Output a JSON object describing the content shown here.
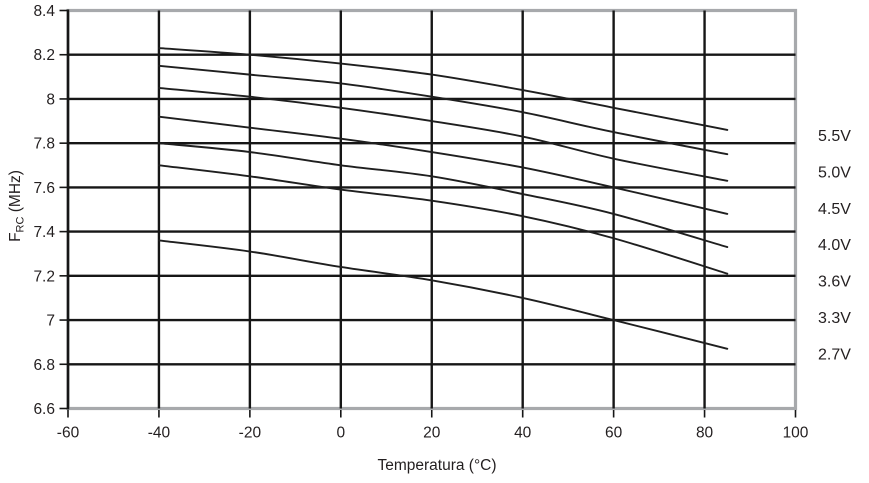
{
  "colors": {
    "line": "#1f1f1f",
    "grid": "#161616",
    "plot_border": "#a7a9ac",
    "text": "#231f20",
    "background": "#ffffff"
  },
  "chart_data": {
    "type": "line",
    "title": "",
    "xlabel": "Temperatura (°C)",
    "ylabel_parts": {
      "pre": "F",
      "sub": "RC",
      "post": " (MHz)"
    },
    "xlim": [
      -60,
      100
    ],
    "ylim": [
      6.6,
      8.4
    ],
    "grid": true,
    "legend_position": "right",
    "x_tick_labels": [
      "-60",
      "-40",
      "-20",
      "0",
      "20",
      "40",
      "60",
      "80",
      "100"
    ],
    "y_tick_labels": [
      "8.4",
      "8.2",
      "8",
      "7.8",
      "7.6",
      "7.4",
      "7.2",
      "7",
      "6.8",
      "6.6"
    ],
    "x": [
      -40,
      -20,
      0,
      20,
      40,
      60,
      85
    ],
    "series": [
      {
        "name": "5.5V",
        "values": [
          8.23,
          8.2,
          8.16,
          8.11,
          8.04,
          7.96,
          7.86
        ]
      },
      {
        "name": "5.0V",
        "values": [
          8.15,
          8.11,
          8.07,
          8.01,
          7.94,
          7.85,
          7.75
        ]
      },
      {
        "name": "4.5V",
        "values": [
          8.05,
          8.01,
          7.96,
          7.9,
          7.83,
          7.73,
          7.63
        ]
      },
      {
        "name": "4.0V",
        "values": [
          7.92,
          7.87,
          7.82,
          7.76,
          7.69,
          7.6,
          7.48
        ]
      },
      {
        "name": "3.6V",
        "values": [
          7.8,
          7.76,
          7.7,
          7.65,
          7.57,
          7.48,
          7.33
        ]
      },
      {
        "name": "3.3V",
        "values": [
          7.7,
          7.65,
          7.59,
          7.54,
          7.47,
          7.37,
          7.21
        ]
      },
      {
        "name": "2.7V",
        "values": [
          7.36,
          7.31,
          7.24,
          7.18,
          7.1,
          7.0,
          6.87
        ]
      }
    ]
  }
}
